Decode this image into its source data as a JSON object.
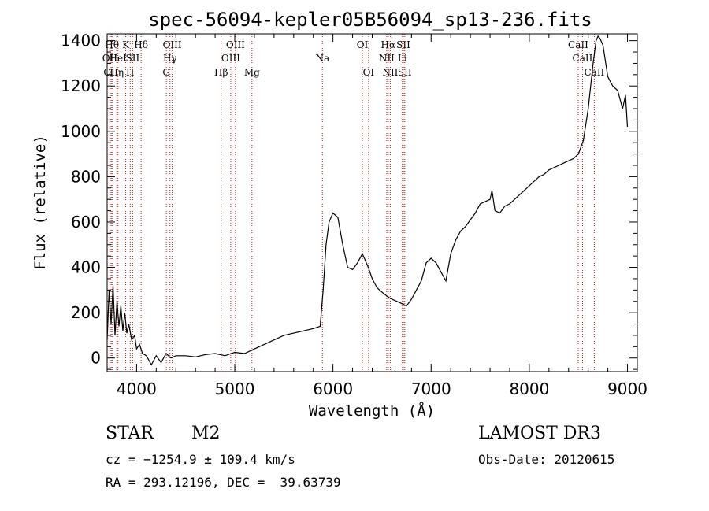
{
  "chart_data": {
    "type": "line",
    "title": "spec-56094-kepler05B56094_sp13-236.fits",
    "xlabel": "Wavelength (Å)",
    "ylabel": "Flux (relative)",
    "xlim": [
      3700,
      9100
    ],
    "ylim": [
      -60,
      1430
    ],
    "x_ticks": [
      4000,
      5000,
      6000,
      7000,
      8000,
      9000
    ],
    "x_tick_labels": [
      "4000",
      "5000",
      "6000",
      "7000",
      "8000",
      "9000"
    ],
    "y_ticks": [
      0,
      200,
      400,
      600,
      800,
      1000,
      1200,
      1400
    ],
    "y_tick_labels": [
      "0",
      "200",
      "400",
      "600",
      "800",
      "1000",
      "1200",
      "1400"
    ],
    "series": [
      {
        "name": "flux",
        "x": [
          3700,
          3720,
          3740,
          3760,
          3780,
          3800,
          3820,
          3840,
          3860,
          3880,
          3900,
          3920,
          3950,
          3980,
          4000,
          4030,
          4060,
          4100,
          4150,
          4200,
          4250,
          4300,
          4350,
          4400,
          4500,
          4600,
          4700,
          4800,
          4900,
          5000,
          5100,
          5200,
          5300,
          5400,
          5500,
          5600,
          5700,
          5800,
          5870,
          5900,
          5930,
          5960,
          6000,
          6050,
          6100,
          6150,
          6200,
          6250,
          6300,
          6320,
          6360,
          6400,
          6450,
          6500,
          6560,
          6600,
          6650,
          6700,
          6750,
          6800,
          6850,
          6900,
          6950,
          7000,
          7050,
          7100,
          7150,
          7200,
          7250,
          7300,
          7350,
          7400,
          7450,
          7500,
          7550,
          7600,
          7620,
          7650,
          7700,
          7750,
          7800,
          7850,
          7900,
          7950,
          8000,
          8050,
          8100,
          8150,
          8200,
          8250,
          8300,
          8350,
          8400,
          8450,
          8500,
          8550,
          8600,
          8650,
          8680,
          8700,
          8720,
          8750,
          8800,
          8850,
          8900,
          8950,
          8980,
          9000
        ],
        "y": [
          80,
          300,
          150,
          320,
          100,
          250,
          140,
          230,
          120,
          200,
          110,
          150,
          80,
          100,
          40,
          60,
          20,
          10,
          -30,
          10,
          -20,
          20,
          0,
          10,
          10,
          5,
          15,
          20,
          10,
          25,
          20,
          40,
          60,
          80,
          100,
          110,
          120,
          130,
          140,
          300,
          500,
          600,
          640,
          620,
          500,
          400,
          390,
          420,
          460,
          440,
          400,
          350,
          310,
          290,
          270,
          260,
          250,
          240,
          230,
          260,
          300,
          340,
          420,
          440,
          420,
          380,
          340,
          460,
          520,
          560,
          580,
          610,
          640,
          680,
          690,
          700,
          740,
          650,
          640,
          670,
          680,
          700,
          720,
          740,
          760,
          780,
          800,
          810,
          830,
          840,
          850,
          860,
          870,
          880,
          900,
          960,
          1100,
          1300,
          1400,
          1420,
          1410,
          1380,
          1240,
          1200,
          1180,
          1100,
          1160,
          1020
        ]
      }
    ],
    "line_markers": [
      {
        "wave": 3727,
        "label": "OII",
        "row": 2
      },
      {
        "wave": 3740,
        "label": "OII",
        "row": 3
      },
      {
        "wave": 3750,
        "label": "Hθ",
        "row": 1
      },
      {
        "wave": 3798,
        "label": "Hη",
        "row": 3
      },
      {
        "wave": 3810,
        "label": "HeI",
        "row": 2
      },
      {
        "wave": 3889,
        "label": "K",
        "row": 1
      },
      {
        "wave": 3935,
        "label": "H",
        "row": 3
      },
      {
        "wave": 3960,
        "label": "SII",
        "row": 2
      },
      {
        "wave": 4046,
        "label": "Hδ",
        "row": 1
      },
      {
        "wave": 4303,
        "label": "G",
        "row": 3
      },
      {
        "wave": 4340,
        "label": "Hγ",
        "row": 2
      },
      {
        "wave": 4363,
        "label": "OIII",
        "row": 1
      },
      {
        "wave": 4861,
        "label": "Hβ",
        "row": 3
      },
      {
        "wave": 4959,
        "label": "OIII",
        "row": 2
      },
      {
        "wave": 5007,
        "label": "OIII",
        "row": 1
      },
      {
        "wave": 5175,
        "label": "Mg",
        "row": 3
      },
      {
        "wave": 5893,
        "label": "Na",
        "row": 2
      },
      {
        "wave": 6300,
        "label": "OI",
        "row": 1
      },
      {
        "wave": 6363,
        "label": "OI",
        "row": 3
      },
      {
        "wave": 6548,
        "label": "NII",
        "row": 2
      },
      {
        "wave": 6563,
        "label": "Hα",
        "row": 1
      },
      {
        "wave": 6584,
        "label": "NII",
        "row": 3
      },
      {
        "wave": 6707,
        "label": "Li",
        "row": 2
      },
      {
        "wave": 6717,
        "label": "SII",
        "row": 1
      },
      {
        "wave": 6731,
        "label": "SII",
        "row": 3
      },
      {
        "wave": 8498,
        "label": "CaII",
        "row": 1
      },
      {
        "wave": 8542,
        "label": "CaII",
        "row": 2
      },
      {
        "wave": 8662,
        "label": "CaII",
        "row": 3
      }
    ]
  },
  "footer": {
    "class": "STAR",
    "subclass": "M2",
    "survey": "LAMOST DR3",
    "cz": "cz = −1254.9 ± 109.4 km/s",
    "obs_date": "Obs-Date: 20120615",
    "coords": "RA = 293.12196, DEC =  39.63739"
  }
}
